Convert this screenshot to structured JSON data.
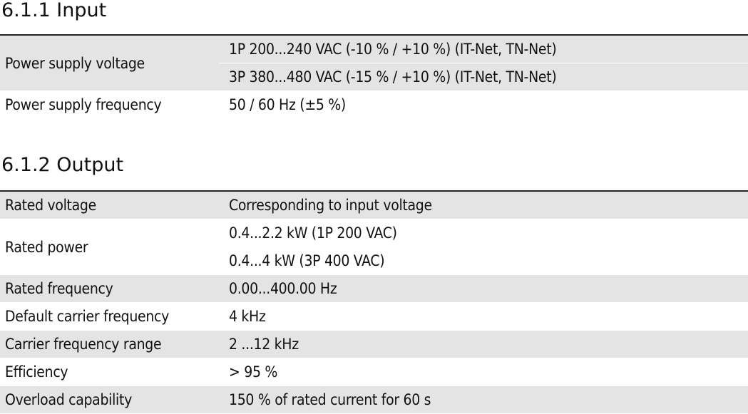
{
  "sections": [
    {
      "heading": "6.1.1  Input",
      "rows": [
        {
          "label": "Power supply voltage",
          "values": [
            "1P 200...240 VAC (-10 % / +10 %) (IT-Net, TN-Net)",
            "3P 380...480 VAC (-15 % / +10 %) (IT-Net, TN-Net)"
          ]
        },
        {
          "label": "Power supply frequency",
          "values": [
            "50 / 60 Hz (±5 %)"
          ]
        }
      ]
    },
    {
      "heading": "6.1.2  Output",
      "rows": [
        {
          "label": "Rated voltage",
          "values": [
            "Corresponding to input voltage"
          ]
        },
        {
          "label": "Rated power",
          "values": [
            "0.4...2.2 kW (1P 200 VAC)",
            "0.4...4 kW (3P 400 VAC)"
          ]
        },
        {
          "label": "Rated frequency",
          "values": [
            "0.00...400.00 Hz"
          ]
        },
        {
          "label": "Default carrier frequency",
          "values": [
            "4 kHz"
          ]
        },
        {
          "label": "Carrier frequency range",
          "values": [
            "2 ...12 kHz"
          ]
        },
        {
          "label": "Efficiency",
          "values": [
            "> 95 %"
          ]
        },
        {
          "label": "Overload capability",
          "values": [
            "150 % of rated current for 60 s"
          ]
        }
      ]
    }
  ]
}
